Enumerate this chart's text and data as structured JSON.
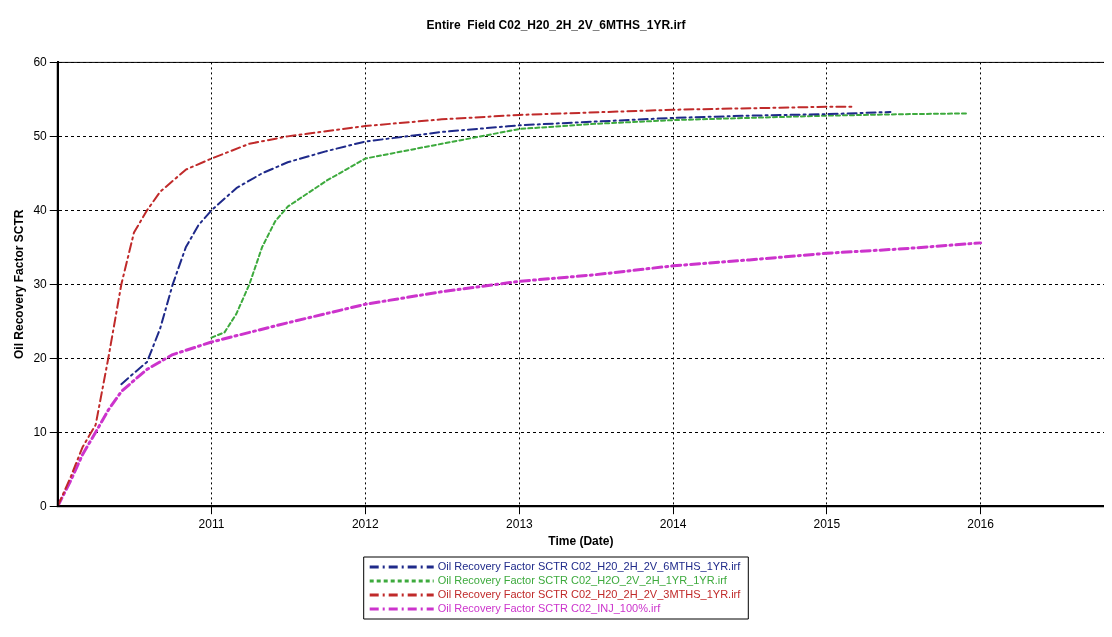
{
  "chart_data": {
    "type": "line",
    "title": "Entire  Field C02_H20_2H_2V_6MTHS_1YR.irf",
    "xlabel": "Time (Date)",
    "ylabel": "Oil Recovery Factor SCTR",
    "xlim": [
      "2010-01-01",
      "2016-10-20"
    ],
    "xticks": [
      "2011",
      "2012",
      "2013",
      "2014",
      "2015",
      "2016"
    ],
    "ylim": [
      0,
      60
    ],
    "yticks": [
      0,
      10,
      20,
      30,
      40,
      50,
      60
    ],
    "grid": true,
    "legend": "bottom",
    "marker": "none",
    "series": [
      {
        "name": "Oil Recovery Factor SCTR C02_H20_2H_2V_6MTHS_1YR.irf",
        "color": "#1f2a8a",
        "line_style": "dashed",
        "x": [
          "2010-06",
          "2010-07",
          "2010-08",
          "2010-09",
          "2010-10",
          "2010-11",
          "2010-12",
          "2011-01",
          "2011-03",
          "2011-05",
          "2011-07",
          "2011-10",
          "2012-01",
          "2012-07",
          "2013-01",
          "2013-07",
          "2014-01",
          "2014-07",
          "2015-01",
          "2015-06"
        ],
        "values": [
          16.5,
          18,
          19.5,
          24,
          30,
          35,
          38,
          40,
          43,
          45,
          46.5,
          48,
          49.3,
          50.6,
          51.5,
          52,
          52.5,
          52.8,
          53,
          53.3
        ]
      },
      {
        "name": "Oil Recovery Factor SCTR C02_H2O_2V_2H_1YR_1YR.irf",
        "color": "#3daa3d",
        "line_style": "dotted",
        "x": [
          "2011-01",
          "2011-02",
          "2011-03",
          "2011-04",
          "2011-05",
          "2011-06",
          "2011-07",
          "2011-10",
          "2012-01",
          "2012-07",
          "2013-01",
          "2013-07",
          "2014-01",
          "2014-07",
          "2015-01",
          "2015-07",
          "2015-12"
        ],
        "values": [
          22.8,
          23.5,
          26,
          30,
          35,
          38.5,
          40.5,
          44,
          47,
          49,
          51,
          51.7,
          52.2,
          52.5,
          52.8,
          53,
          53.1
        ]
      },
      {
        "name": "Oil Recovery Factor SCTR C02_H20_2H_2V_3MTHS_1YR.irf",
        "color": "#c02a2a",
        "line_style": "dashed",
        "x": [
          "2010-01",
          "2010-02",
          "2010-03",
          "2010-04",
          "2010-05",
          "2010-06",
          "2010-07",
          "2010-08",
          "2010-09",
          "2010-11",
          "2011-01",
          "2011-04",
          "2011-07",
          "2012-01",
          "2012-07",
          "2013-01",
          "2014-01",
          "2015-01",
          "2015-03"
        ],
        "values": [
          0,
          4,
          8,
          11,
          20,
          30,
          37,
          40,
          42.5,
          45.5,
          47,
          49,
          50,
          51.4,
          52.3,
          52.9,
          53.6,
          54,
          54
        ]
      },
      {
        "name": "Oil Recovery Factor SCTR C02_INJ_100%.irf",
        "color": "#cc33cc",
        "line_style": "dashed",
        "x": [
          "2010-01",
          "2010-02",
          "2010-03",
          "2010-04",
          "2010-05",
          "2010-06",
          "2010-07",
          "2010-08",
          "2010-10",
          "2011-01",
          "2011-07",
          "2012-01",
          "2012-07",
          "2013-01",
          "2013-07",
          "2014-01",
          "2014-07",
          "2015-01",
          "2015-07",
          "2016-01"
        ],
        "values": [
          0,
          3.5,
          7,
          10,
          13,
          15.5,
          17,
          18.5,
          20.5,
          22.2,
          24.8,
          27.3,
          29,
          30.4,
          31.3,
          32.5,
          33.3,
          34.2,
          34.8,
          35.6
        ]
      }
    ]
  }
}
